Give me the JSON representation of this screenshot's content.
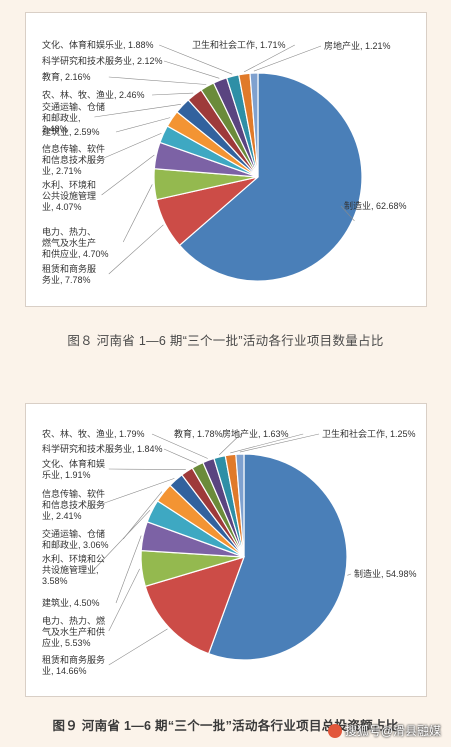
{
  "chart_data": [
    {
      "type": "pie",
      "unit": "%",
      "start": "top",
      "direction": "clockwise",
      "categories": [
        "制造业",
        "租赁和商务服务业",
        "电力、热力、燃气及水生产和供应业",
        "水利、环境和公共设施管理业",
        "信息传输、软件和信息技术服务业",
        "建筑业",
        "交通运输、仓储和邮政业",
        "农、林、牧、渔业",
        "教育",
        "科学研究和技术服务业",
        "文化、体育和娱乐业",
        "卫生和社会工作",
        "房地产业"
      ],
      "values": [
        62.68,
        7.78,
        4.7,
        4.07,
        2.71,
        2.59,
        2.48,
        2.46,
        2.16,
        2.12,
        1.88,
        1.71,
        1.21
      ],
      "labels": [
        "制造业, 62.68%",
        "租赁和商务服\n务业, 7.78%",
        "电力、热力、\n燃气及水生产\n和供应业, 4.70%",
        "水利、环境和\n公共设施管理\n业, 4.07%",
        "信息传输、软件\n和信息技术服务\n业, 2.71%",
        "建筑业, 2.59%",
        "交通运输、仓储\n和邮政业,\n2.48%",
        "农、林、牧、渔业, 2.46%",
        "教育, 2.16%",
        "科学研究和技术服务业, 2.12%",
        "文化、体育和娱乐业, 1.88%",
        "卫生和社会工作, 1.71%",
        "房地产业, 1.21%"
      ],
      "colors": [
        "#4a7fb8",
        "#cc4c47",
        "#94b94f",
        "#7c62a5",
        "#3ea8c2",
        "#f39433",
        "#32629e",
        "#9e3a3a",
        "#6b8b3a",
        "#5a4480",
        "#2e8fa6",
        "#e07a2a",
        "#7fa1cf"
      ],
      "caption": "图８  河南省 1—6 期“三个一批”活动各行业项目数量占比"
    },
    {
      "type": "pie",
      "unit": "%",
      "start": "top",
      "direction": "clockwise",
      "categories": [
        "制造业",
        "租赁和商务服务业",
        "电力、热力、燃气及水生产和供应业",
        "建筑业",
        "水利、环境和公共设施管理业",
        "交通运输、仓储和邮政业",
        "信息传输、软件和信息技术服务业",
        "文化、体育和娱乐业",
        "科学研究和技术服务业",
        "农、林、牧、渔业",
        "教育",
        "房地产业",
        "卫生和社会工作"
      ],
      "values": [
        54.98,
        14.66,
        5.53,
        4.5,
        3.58,
        3.06,
        2.41,
        1.91,
        1.84,
        1.79,
        1.78,
        1.63,
        1.25
      ],
      "labels": [
        "制造业, 54.98%",
        "租赁和商务服务\n业, 14.66%",
        "电力、热力、燃\n气及水生产和供\n应业, 5.53%",
        "建筑业, 4.50%",
        "水利、环境和公\n共设施管理业,\n3.58%",
        "交通运输、仓储\n和邮政业, 3.06%",
        "信息传输、软件\n和信息技术服务\n业, 2.41%",
        "文化、体育和娱\n乐业, 1.91%",
        "科学研究和技术服务业, 1.84%",
        "农、林、牧、渔业, 1.79%",
        "教育, 1.78%",
        "房地产业, 1.63%",
        "卫生和社会工作, 1.25%"
      ],
      "colors": [
        "#4a7fb8",
        "#cc4c47",
        "#94b94f",
        "#7c62a5",
        "#3ea8c2",
        "#f39433",
        "#32629e",
        "#9e3a3a",
        "#6b8b3a",
        "#5a4480",
        "#2e8fa6",
        "#e07a2a",
        "#7fa1cf"
      ],
      "caption": "图９  河南省 1—6 期“三个一批”活动各行业项目总投资额占比"
    }
  ],
  "watermark": "搜狐号@滑县融媒"
}
